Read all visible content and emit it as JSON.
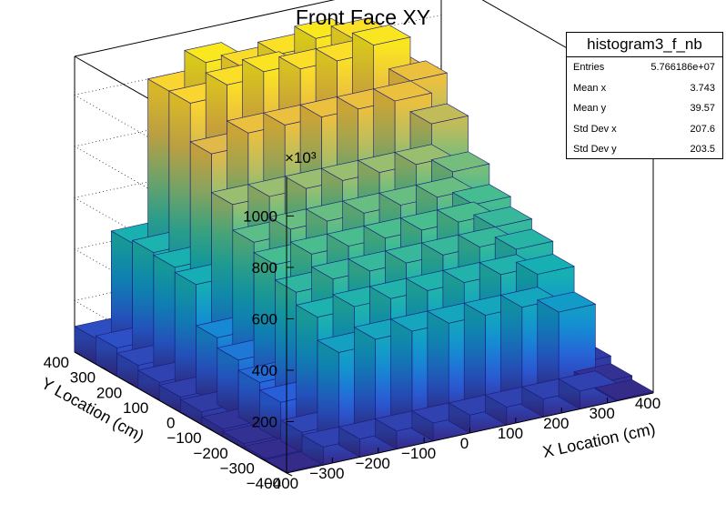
{
  "title": "Front Face XY",
  "stats": {
    "name": "histogram3_f_nb",
    "rows": [
      {
        "label": "Entries",
        "value": "5.766186e+07"
      },
      {
        "label": "Mean x",
        "value": "3.743"
      },
      {
        "label": "Mean y",
        "value": "39.57"
      },
      {
        "label": "Std Dev x",
        "value": "207.6"
      },
      {
        "label": "Std Dev y",
        "value": "203.5"
      }
    ]
  },
  "chart_data": {
    "type": "lego-histogram-2d",
    "title": "Front Face XY",
    "xlabel": "X Location (cm)",
    "ylabel": "Y Location (cm)",
    "zlabel": "",
    "z_exponent_label": "×10³",
    "x_range": [
      -400,
      400
    ],
    "y_range": [
      -400,
      400
    ],
    "z_range": [
      0,
      1150
    ],
    "x_ticks": [
      "−400",
      "−300",
      "−200",
      "−100",
      "0",
      "100",
      "200",
      "300",
      "400"
    ],
    "y_ticks": [
      "−400",
      "−300",
      "−200",
      "−100",
      "0",
      "100",
      "200",
      "300",
      "400"
    ],
    "z_ticks": [
      "200",
      "400",
      "600",
      "800",
      "1000"
    ],
    "colormap": [
      "#352a87",
      "#2a5cd9",
      "#1292d1",
      "#16b0b2",
      "#4cbd8d",
      "#a5be6a",
      "#e6b845",
      "#fbd52f",
      "#f9fb0e"
    ],
    "x_bins": [
      -400,
      -320,
      -240,
      -160,
      -80,
      0,
      80,
      160,
      240,
      320,
      400
    ],
    "y_bins": [
      -400,
      -320,
      -240,
      -160,
      -80,
      0,
      80,
      160,
      240,
      320,
      400
    ],
    "values": [
      [
        5,
        70,
        70,
        70,
        70,
        70,
        70,
        70,
        70,
        5
      ],
      [
        10,
        80,
        360,
        380,
        380,
        380,
        380,
        380,
        330,
        20
      ],
      [
        20,
        150,
        450,
        460,
        460,
        460,
        460,
        460,
        430,
        50
      ],
      [
        30,
        180,
        500,
        520,
        520,
        520,
        520,
        520,
        480,
        60
      ],
      [
        50,
        220,
        560,
        570,
        570,
        570,
        570,
        570,
        520,
        70
      ],
      [
        60,
        260,
        600,
        620,
        620,
        620,
        620,
        620,
        560,
        80
      ],
      [
        70,
        420,
        700,
        700,
        700,
        700,
        700,
        700,
        640,
        90
      ],
      [
        90,
        440,
        850,
        900,
        900,
        900,
        900,
        900,
        780,
        100
      ],
      [
        110,
        450,
        1000,
        1040,
        1060,
        1040,
        1040,
        1070,
        900,
        120
      ],
      [
        100,
        440,
        1000,
        1080,
        1030,
        1050,
        1080,
        1050,
        880,
        110
      ]
    ]
  }
}
